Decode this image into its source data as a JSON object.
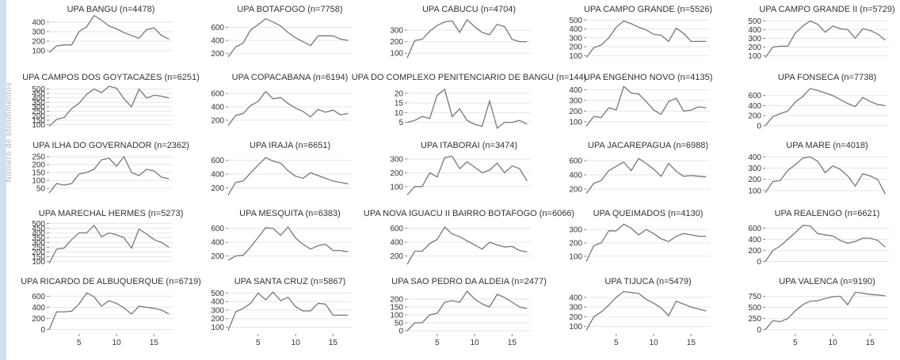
{
  "ylabel": "Número de atendimentos",
  "chart_data": [
    {
      "type": "line",
      "title": "UPA BANGU (n=4478)",
      "yticks": [
        100,
        200,
        300,
        400
      ],
      "ylim": [
        0,
        450
      ],
      "x": [
        1,
        2,
        3,
        4,
        5,
        6,
        7,
        8,
        9,
        10,
        11,
        12,
        13,
        14,
        15,
        16,
        17
      ],
      "values": [
        80,
        150,
        160,
        160,
        300,
        350,
        470,
        420,
        360,
        330,
        290,
        260,
        230,
        320,
        340,
        260,
        220
      ]
    },
    {
      "type": "line",
      "title": "UPA BOTAFOGO (n=7758)",
      "yticks": [
        200,
        400,
        600
      ],
      "ylim": [
        100,
        750
      ],
      "x": [
        1,
        2,
        3,
        4,
        5,
        6,
        7,
        8,
        9,
        10,
        11,
        12,
        13,
        14,
        15,
        16,
        17
      ],
      "values": [
        150,
        300,
        360,
        560,
        640,
        730,
        680,
        620,
        520,
        440,
        380,
        320,
        470,
        470,
        470,
        420,
        400
      ]
    },
    {
      "type": "line",
      "title": "UPA CABUCU (n=4704)",
      "yticks": [
        100,
        200,
        300
      ],
      "ylim": [
        40,
        410
      ],
      "x": [
        1,
        2,
        3,
        4,
        5,
        6,
        7,
        8,
        9,
        10,
        11,
        12,
        13,
        14,
        15,
        16,
        17
      ],
      "values": [
        60,
        210,
        220,
        290,
        340,
        370,
        380,
        280,
        390,
        330,
        280,
        260,
        350,
        330,
        220,
        200,
        200
      ]
    },
    {
      "type": "line",
      "title": "UPA CAMPO GRANDE (n=5526)",
      "yticks": [
        100,
        200,
        300,
        400,
        500
      ],
      "ylim": [
        50,
        530
      ],
      "x": [
        1,
        2,
        3,
        4,
        5,
        6,
        7,
        8,
        9,
        10,
        11,
        12,
        13,
        14,
        15,
        16,
        17
      ],
      "values": [
        80,
        190,
        220,
        300,
        420,
        490,
        460,
        420,
        390,
        340,
        330,
        260,
        410,
        350,
        260,
        260,
        260
      ]
    },
    {
      "type": "line",
      "title": "UPA CAMPO GRANDE II (n=5729)",
      "yticks": [
        100,
        200,
        300,
        400,
        500
      ],
      "ylim": [
        50,
        540
      ],
      "x": [
        1,
        2,
        3,
        4,
        5,
        6,
        7,
        8,
        9,
        10,
        11,
        12,
        13,
        14,
        15,
        16,
        17
      ],
      "values": [
        80,
        200,
        210,
        210,
        360,
        440,
        500,
        460,
        370,
        440,
        410,
        400,
        300,
        410,
        390,
        350,
        280
      ]
    },
    {
      "type": "line",
      "title": "UPA CAMPOS DOS GOYTACAZES (n=6251)",
      "yticks": [
        100,
        150,
        200,
        250,
        300,
        350,
        400,
        450,
        500
      ],
      "ylim": [
        60,
        540
      ],
      "x": [
        1,
        2,
        3,
        4,
        5,
        6,
        7,
        8,
        9,
        10,
        11,
        12,
        13,
        14,
        15,
        16,
        17
      ],
      "values": [
        80,
        160,
        180,
        280,
        340,
        440,
        500,
        460,
        530,
        510,
        390,
        300,
        500,
        400,
        430,
        420,
        400
      ]
    },
    {
      "type": "line",
      "title": "UPA COPACABANA (n=6194)",
      "yticks": [
        200,
        400,
        600
      ],
      "ylim": [
        80,
        720
      ],
      "x": [
        1,
        2,
        3,
        4,
        5,
        6,
        7,
        8,
        9,
        10,
        11,
        12,
        13,
        14,
        15,
        16,
        17
      ],
      "values": [
        120,
        270,
        300,
        420,
        480,
        630,
        520,
        540,
        450,
        380,
        330,
        250,
        360,
        320,
        350,
        280,
        300
      ]
    },
    {
      "type": "line",
      "title": "UPA DO COMPLEXO PENITENCIARIO DE BANGU (n=144)",
      "yticks": [
        5,
        10,
        15,
        20
      ],
      "ylim": [
        2,
        24
      ],
      "x": [
        1,
        2,
        3,
        4,
        5,
        6,
        7,
        8,
        9,
        10,
        11,
        12,
        13,
        14,
        15,
        16,
        17
      ],
      "values": [
        5,
        6,
        8,
        7,
        19,
        22,
        8,
        12,
        6,
        4,
        3,
        16,
        2,
        5,
        5,
        6,
        4
      ]
    },
    {
      "type": "line",
      "title": "UPA ENGENHO NOVO (n=4135)",
      "yticks": [
        100,
        200,
        300,
        400
      ],
      "ylim": [
        40,
        440
      ],
      "x": [
        1,
        2,
        3,
        4,
        5,
        6,
        7,
        8,
        9,
        10,
        11,
        12,
        13,
        14,
        15,
        16,
        17
      ],
      "values": [
        60,
        150,
        140,
        230,
        210,
        430,
        370,
        360,
        290,
        210,
        170,
        290,
        320,
        200,
        210,
        240,
        230
      ]
    },
    {
      "type": "line",
      "title": "UPA FONSECA (n=7738)",
      "yticks": [
        0,
        200,
        400,
        600
      ],
      "ylim": [
        -50,
        800
      ],
      "x": [
        1,
        2,
        3,
        4,
        5,
        6,
        7,
        8,
        9,
        10,
        11,
        12,
        13,
        14,
        15,
        16,
        17
      ],
      "values": [
        0,
        180,
        240,
        290,
        470,
        580,
        740,
        700,
        650,
        600,
        520,
        440,
        380,
        560,
        480,
        420,
        400
      ]
    },
    {
      "type": "line",
      "title": "UPA ILHA DO GOVERNADOR (n=2362)",
      "yticks": [
        50,
        100,
        150,
        200,
        250
      ],
      "ylim": [
        0,
        270
      ],
      "x": [
        1,
        2,
        3,
        4,
        5,
        6,
        7,
        8,
        9,
        10,
        11,
        12,
        13,
        14,
        15,
        16,
        17
      ],
      "values": [
        20,
        80,
        70,
        80,
        140,
        150,
        170,
        230,
        240,
        190,
        250,
        150,
        130,
        170,
        160,
        120,
        110
      ]
    },
    {
      "type": "line",
      "title": "UPA IRAJA (n=6651)",
      "yticks": [
        200,
        400,
        600
      ],
      "ylim": [
        80,
        700
      ],
      "x": [
        1,
        2,
        3,
        4,
        5,
        6,
        7,
        8,
        9,
        10,
        11,
        12,
        13,
        14,
        15,
        16,
        17
      ],
      "values": [
        100,
        280,
        300,
        420,
        530,
        640,
        590,
        560,
        450,
        370,
        340,
        420,
        380,
        340,
        300,
        280,
        260
      ]
    },
    {
      "type": "line",
      "title": "UPA ITABORAI (n=3474)",
      "yticks": [
        100,
        200,
        300
      ],
      "ylim": [
        30,
        340
      ],
      "x": [
        1,
        2,
        3,
        4,
        5,
        6,
        7,
        8,
        9,
        10,
        11,
        12,
        13,
        14,
        15,
        16,
        17
      ],
      "values": [
        40,
        100,
        100,
        200,
        170,
        310,
        320,
        230,
        280,
        240,
        200,
        220,
        270,
        200,
        250,
        230,
        140
      ]
    },
    {
      "type": "line",
      "title": "UPA JACAREPAGUA (n=6988)",
      "yticks": [
        200,
        400,
        600
      ],
      "ylim": [
        100,
        700
      ],
      "x": [
        1,
        2,
        3,
        4,
        5,
        6,
        7,
        8,
        9,
        10,
        11,
        12,
        13,
        14,
        15,
        16,
        17
      ],
      "values": [
        140,
        280,
        320,
        460,
        520,
        580,
        460,
        630,
        560,
        480,
        380,
        560,
        450,
        380,
        390,
        380,
        370
      ]
    },
    {
      "type": "line",
      "title": "UPA MARE (n=4018)",
      "yticks": [
        100,
        200,
        300,
        400
      ],
      "ylim": [
        50,
        430
      ],
      "x": [
        1,
        2,
        3,
        4,
        5,
        6,
        7,
        8,
        9,
        10,
        11,
        12,
        13,
        14,
        15,
        16,
        17
      ],
      "values": [
        80,
        180,
        190,
        280,
        330,
        390,
        400,
        360,
        260,
        320,
        290,
        230,
        140,
        250,
        230,
        200,
        70
      ]
    },
    {
      "type": "line",
      "title": "UPA MARECHAL HERMES (n=5273)",
      "yticks": [
        100,
        150,
        200,
        250,
        300,
        350,
        400,
        450,
        500
      ],
      "ylim": [
        70,
        520
      ],
      "x": [
        1,
        2,
        3,
        4,
        5,
        6,
        7,
        8,
        9,
        10,
        11,
        12,
        13,
        14,
        15,
        16,
        17
      ],
      "values": [
        80,
        230,
        240,
        330,
        400,
        400,
        480,
        360,
        400,
        380,
        350,
        240,
        440,
        390,
        330,
        300,
        250
      ]
    },
    {
      "type": "line",
      "title": "UPA MESQUITA (n=6383)",
      "yticks": [
        200,
        400,
        600
      ],
      "ylim": [
        80,
        700
      ],
      "x": [
        1,
        2,
        3,
        4,
        5,
        6,
        7,
        8,
        9,
        10,
        11,
        12,
        13,
        14,
        15,
        16,
        17
      ],
      "values": [
        140,
        200,
        210,
        330,
        470,
        610,
        600,
        500,
        620,
        460,
        370,
        300,
        350,
        370,
        280,
        280,
        260
      ]
    },
    {
      "type": "line",
      "title": "UPA NOVA IGUACU II BAIRRO BOTAFOGO (n=6066)",
      "yticks": [
        200,
        400,
        600
      ],
      "ylim": [
        80,
        700
      ],
      "x": [
        1,
        2,
        3,
        4,
        5,
        6,
        7,
        8,
        9,
        10,
        11,
        12,
        13,
        14,
        15,
        16,
        17
      ],
      "values": [
        80,
        270,
        270,
        380,
        440,
        620,
        520,
        480,
        420,
        360,
        300,
        400,
        360,
        330,
        340,
        280,
        260
      ]
    },
    {
      "type": "line",
      "title": "UPA QUEIMADOS (n=4130)",
      "yticks": [
        100,
        200,
        300
      ],
      "ylim": [
        40,
        360
      ],
      "x": [
        1,
        2,
        3,
        4,
        5,
        6,
        7,
        8,
        9,
        10,
        11,
        12,
        13,
        14,
        15,
        16,
        17
      ],
      "values": [
        60,
        180,
        200,
        290,
        290,
        340,
        310,
        260,
        300,
        270,
        230,
        210,
        250,
        270,
        260,
        250,
        250
      ]
    },
    {
      "type": "line",
      "title": "UPA REALENGO (n=6621)",
      "yticks": [
        0,
        200,
        400,
        600
      ],
      "ylim": [
        -50,
        720
      ],
      "x": [
        1,
        2,
        3,
        4,
        5,
        6,
        7,
        8,
        9,
        10,
        11,
        12,
        13,
        14,
        15,
        16,
        17
      ],
      "values": [
        0,
        200,
        280,
        400,
        520,
        650,
        640,
        500,
        480,
        460,
        380,
        330,
        360,
        420,
        420,
        380,
        260
      ]
    },
    {
      "type": "line",
      "title": "UPA RICARDO DE ALBUQUERQUE (n=6719)",
      "yticks": [
        0,
        200,
        400,
        600
      ],
      "ylim": [
        -50,
        720
      ],
      "x": [
        1,
        2,
        3,
        4,
        5,
        6,
        7,
        8,
        9,
        10,
        11,
        12,
        13,
        14,
        15,
        16,
        17
      ],
      "values": [
        0,
        320,
        320,
        330,
        460,
        660,
        590,
        420,
        520,
        470,
        390,
        280,
        420,
        400,
        380,
        350,
        280
      ]
    },
    {
      "type": "line",
      "title": "UPA SANTA CRUZ (n=5867)",
      "yticks": [
        100,
        200,
        300,
        400,
        500
      ],
      "ylim": [
        40,
        540
      ],
      "x": [
        1,
        2,
        3,
        4,
        5,
        6,
        7,
        8,
        9,
        10,
        11,
        12,
        13,
        14,
        15,
        16,
        17
      ],
      "values": [
        60,
        280,
        320,
        380,
        500,
        420,
        510,
        410,
        450,
        340,
        290,
        290,
        380,
        370,
        240,
        240,
        240
      ]
    },
    {
      "type": "line",
      "title": "UPA SAO PEDRO DA ALDEIA (n=2477)",
      "yticks": [
        0,
        50,
        100,
        150,
        200
      ],
      "ylim": [
        -10,
        260
      ],
      "x": [
        1,
        2,
        3,
        4,
        5,
        6,
        7,
        8,
        9,
        10,
        11,
        12,
        13,
        14,
        15,
        16,
        17
      ],
      "values": [
        0,
        50,
        50,
        100,
        110,
        180,
        190,
        180,
        250,
        200,
        170,
        150,
        230,
        210,
        180,
        150,
        140
      ]
    },
    {
      "type": "line",
      "title": "UPA TIJUCA (n=5479)",
      "yticks": [
        100,
        200,
        300,
        400
      ],
      "ylim": [
        40,
        480
      ],
      "x": [
        1,
        2,
        3,
        4,
        5,
        6,
        7,
        8,
        9,
        10,
        11,
        12,
        13,
        14,
        15,
        16,
        17
      ],
      "values": [
        60,
        200,
        250,
        320,
        400,
        460,
        450,
        440,
        380,
        340,
        290,
        210,
        360,
        330,
        300,
        280,
        260
      ]
    },
    {
      "type": "line",
      "title": "UPA VALENCA (n=9190)",
      "yticks": [
        0,
        250,
        500,
        750
      ],
      "ylim": [
        -60,
        900
      ],
      "x": [
        1,
        2,
        3,
        4,
        5,
        6,
        7,
        8,
        9,
        10,
        11,
        12,
        13,
        14,
        15,
        16,
        17
      ],
      "values": [
        0,
        200,
        180,
        250,
        420,
        560,
        640,
        650,
        700,
        740,
        750,
        560,
        840,
        820,
        790,
        780,
        760
      ]
    }
  ],
  "xaxis": {
    "ticks": [
      5,
      10,
      15
    ],
    "xlim": [
      1,
      17.5
    ]
  }
}
